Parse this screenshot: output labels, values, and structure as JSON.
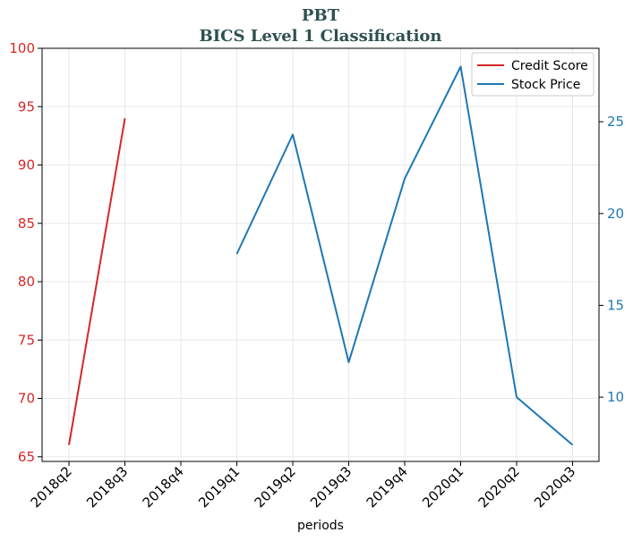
{
  "chart_data": {
    "type": "line",
    "title": "PBT",
    "subtitle": "BICS Level 1 Classification",
    "xlabel": "periods",
    "categories": [
      "2018q2",
      "2018q3",
      "2018q4",
      "2019q1",
      "2019q2",
      "2019q3",
      "2019q4",
      "2020q1",
      "2020q2",
      "2020q3"
    ],
    "left_axis": {
      "ylim": [
        64.6,
        100
      ],
      "ticks": [
        65,
        70,
        75,
        80,
        85,
        90,
        95,
        100
      ],
      "color": "#d62728"
    },
    "right_axis": {
      "ylim": [
        6.5,
        29
      ],
      "ticks": [
        10,
        15,
        20,
        25
      ],
      "color": "#1f77b4"
    },
    "grid": true,
    "legend_position": "top-right",
    "series": [
      {
        "name": "Credit Score",
        "axis": "left",
        "color": "#d62728",
        "values": [
          66,
          94,
          null,
          null,
          null,
          null,
          null,
          null,
          null,
          null
        ]
      },
      {
        "name": "Stock Price",
        "axis": "right",
        "color": "#1f77b4",
        "values": [
          null,
          null,
          null,
          17.8,
          24.3,
          11.9,
          21.9,
          28.0,
          10.0,
          7.4
        ]
      }
    ]
  }
}
